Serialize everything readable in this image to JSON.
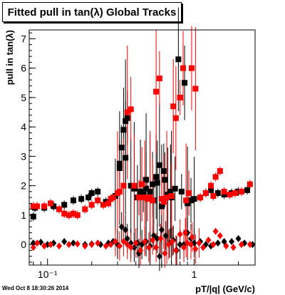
{
  "chart_data": {
    "type": "scatter",
    "title": "Fitted pull in tan(λ)  Global Tracks",
    "xlabel": "pT/|q| (GeV/c)",
    "ylabel": "pull in tan(λ)",
    "x_scale": "log",
    "xlim": [
      0.075,
      2.6
    ],
    "ylim": [
      -0.7,
      7.3
    ],
    "x_tick_labels": [
      {
        "v": 0.1,
        "t": "10⁻¹"
      },
      {
        "v": 1,
        "t": "1"
      }
    ],
    "y_ticks": [
      0,
      1,
      2,
      3,
      4,
      5,
      6,
      7
    ],
    "series": [
      {
        "marker": "square",
        "color": "#000000",
        "points": [
          [
            0.08,
            0.95
          ],
          [
            0.082,
            1.25
          ],
          [
            0.095,
            1.25
          ],
          [
            0.11,
            1.3
          ],
          [
            0.13,
            1.35
          ],
          [
            0.15,
            1.5
          ],
          [
            0.17,
            1.55
          ],
          [
            0.19,
            1.6
          ],
          [
            0.2,
            1.75
          ],
          [
            0.22,
            1.8
          ],
          [
            0.25,
            1.45
          ],
          [
            0.27,
            1.55
          ],
          [
            0.29,
            1.65
          ],
          [
            0.31,
            2.6
          ],
          [
            0.32,
            3.3
          ],
          [
            0.33,
            3.9
          ],
          [
            0.34,
            4.2
          ],
          [
            0.35,
            4.3
          ],
          [
            0.37,
            2.0
          ],
          [
            0.39,
            1.9
          ],
          [
            0.41,
            1.6
          ],
          [
            0.43,
            1.8
          ],
          [
            0.45,
            1.7
          ],
          [
            0.47,
            1.9
          ],
          [
            0.5,
            1.8
          ],
          [
            0.53,
            1.5
          ],
          [
            0.56,
            2.1
          ],
          [
            0.6,
            1.3
          ],
          [
            0.63,
            2.2
          ],
          [
            0.66,
            1.7
          ],
          [
            0.7,
            1.6
          ],
          [
            0.74,
            1.9
          ],
          [
            0.78,
            6.3
          ],
          [
            0.82,
            1.8
          ],
          [
            0.86,
            5.5
          ],
          [
            0.9,
            1.4
          ],
          [
            0.95,
            1.5
          ],
          [
            1.0,
            1.55
          ],
          [
            1.1,
            1.6
          ],
          [
            1.2,
            1.75
          ],
          [
            1.3,
            1.85
          ],
          [
            1.45,
            1.75
          ],
          [
            1.6,
            1.7
          ],
          [
            1.8,
            1.75
          ],
          [
            2.0,
            1.8
          ],
          [
            2.3,
            1.85
          ],
          [
            0.34,
            2.95
          ],
          [
            0.31,
            2.75
          ],
          [
            0.55,
            2.3
          ],
          [
            0.58,
            2.7
          ],
          [
            0.62,
            2.5
          ],
          [
            0.69,
            1.8
          ],
          [
            0.47,
            2.2
          ],
          [
            0.52,
            2.05
          ]
        ]
      },
      {
        "marker": "square",
        "color": "#ff0000",
        "points": [
          [
            0.08,
            1.3
          ],
          [
            0.085,
            1.3
          ],
          [
            0.095,
            1.3
          ],
          [
            0.105,
            1.4
          ],
          [
            0.12,
            1.2
          ],
          [
            0.13,
            1.05
          ],
          [
            0.14,
            1.0
          ],
          [
            0.15,
            1.05
          ],
          [
            0.16,
            1.0
          ],
          [
            0.18,
            1.2
          ],
          [
            0.2,
            1.35
          ],
          [
            0.22,
            1.5
          ],
          [
            0.24,
            1.35
          ],
          [
            0.26,
            1.4
          ],
          [
            0.27,
            1.55
          ],
          [
            0.28,
            1.6
          ],
          [
            0.3,
            1.75
          ],
          [
            0.31,
            1.8
          ],
          [
            0.33,
            2.0
          ],
          [
            0.35,
            4.5
          ],
          [
            0.37,
            4.6
          ],
          [
            0.39,
            2.0
          ],
          [
            0.42,
            1.6
          ],
          [
            0.44,
            2.05
          ],
          [
            0.46,
            1.6
          ],
          [
            0.48,
            1.55
          ],
          [
            0.52,
            1.5
          ],
          [
            0.55,
            5.2
          ],
          [
            0.58,
            5.65
          ],
          [
            0.62,
            1.45
          ],
          [
            0.65,
            1.6
          ],
          [
            0.7,
            1.65
          ],
          [
            0.75,
            4.3
          ],
          [
            0.8,
            5.0
          ],
          [
            0.84,
            6.0
          ],
          [
            0.88,
            1.5
          ],
          [
            0.92,
            1.75
          ],
          [
            0.96,
            6.0
          ],
          [
            1.02,
            5.3
          ],
          [
            1.1,
            1.6
          ],
          [
            1.2,
            1.75
          ],
          [
            1.3,
            2.0
          ],
          [
            1.4,
            2.3
          ],
          [
            1.5,
            2.5
          ],
          [
            1.6,
            1.8
          ],
          [
            1.75,
            1.7
          ],
          [
            1.9,
            1.75
          ],
          [
            2.1,
            1.8
          ],
          [
            2.4,
            2.05
          ],
          [
            1.35,
            1.65
          ],
          [
            0.6,
            1.55
          ],
          [
            0.72,
            4.7
          ],
          [
            0.5,
            1.6
          ]
        ]
      },
      {
        "marker": "diamond",
        "color": "#000000",
        "points": [
          [
            0.08,
            0.05
          ],
          [
            0.09,
            0.08
          ],
          [
            0.1,
            0.0
          ],
          [
            0.11,
            0.05
          ],
          [
            0.13,
            0.1
          ],
          [
            0.15,
            0.05
          ],
          [
            0.18,
            0.0
          ],
          [
            0.2,
            0.02
          ],
          [
            0.23,
            0.0
          ],
          [
            0.26,
            0.05
          ],
          [
            0.28,
            0.1
          ],
          [
            0.3,
            0.0
          ],
          [
            0.32,
            0.6
          ],
          [
            0.34,
            0.5
          ],
          [
            0.35,
            0.2
          ],
          [
            0.37,
            0.05
          ],
          [
            0.39,
            -0.1
          ],
          [
            0.41,
            0.05
          ],
          [
            0.44,
            0.0
          ],
          [
            0.47,
            0.1
          ],
          [
            0.5,
            -0.05
          ],
          [
            0.53,
            0.3
          ],
          [
            0.56,
            0.2
          ],
          [
            0.6,
            0.5
          ],
          [
            0.64,
            0.3
          ],
          [
            0.68,
            0.05
          ],
          [
            0.72,
            0.15
          ],
          [
            0.76,
            -0.2
          ],
          [
            0.8,
            0.0
          ],
          [
            0.85,
            0.0
          ],
          [
            0.9,
            0.4
          ],
          [
            0.95,
            0.2
          ],
          [
            1.0,
            0.05
          ],
          [
            1.1,
            0.1
          ],
          [
            1.2,
            0.0
          ],
          [
            1.3,
            -0.05
          ],
          [
            1.45,
            0.05
          ],
          [
            1.6,
            0.1
          ],
          [
            1.8,
            0.1
          ],
          [
            2.0,
            0.2
          ],
          [
            2.2,
            0.05
          ],
          [
            2.5,
            0.0
          ],
          [
            0.42,
            -0.3
          ],
          [
            0.58,
            -0.4
          ]
        ]
      },
      {
        "marker": "diamond",
        "color": "#ff0000",
        "points": [
          [
            0.08,
            -0.1
          ],
          [
            0.085,
            0.05
          ],
          [
            0.095,
            -0.05
          ],
          [
            0.105,
            0.0
          ],
          [
            0.12,
            -0.05
          ],
          [
            0.14,
            0.0
          ],
          [
            0.16,
            0.02
          ],
          [
            0.18,
            -0.05
          ],
          [
            0.2,
            0.0
          ],
          [
            0.22,
            0.05
          ],
          [
            0.25,
            -0.05
          ],
          [
            0.27,
            0.0
          ],
          [
            0.29,
            0.1
          ],
          [
            0.31,
            -0.05
          ],
          [
            0.33,
            0.1
          ],
          [
            0.35,
            0.0
          ],
          [
            0.37,
            -0.1
          ],
          [
            0.4,
            0.05
          ],
          [
            0.43,
            -0.2
          ],
          [
            0.46,
            0.1
          ],
          [
            0.49,
            -0.1
          ],
          [
            0.52,
            0.15
          ],
          [
            0.55,
            -0.1
          ],
          [
            0.59,
            0.2
          ],
          [
            0.63,
            -0.3
          ],
          [
            0.67,
            0.0
          ],
          [
            0.71,
            0.1
          ],
          [
            0.75,
            -0.2
          ],
          [
            0.8,
            0.35
          ],
          [
            0.85,
            -0.1
          ],
          [
            0.9,
            0.05
          ],
          [
            0.95,
            0.0
          ],
          [
            1.02,
            -0.15
          ],
          [
            1.08,
            0.05
          ],
          [
            1.15,
            -0.1
          ],
          [
            1.25,
            0.15
          ],
          [
            1.35,
            0.0
          ],
          [
            1.5,
            0.3
          ],
          [
            1.65,
            -0.05
          ],
          [
            1.85,
            -0.1
          ],
          [
            2.1,
            0.0
          ],
          [
            2.4,
            0.0
          ],
          [
            1.4,
            0.45
          ],
          [
            0.87,
            0.4
          ],
          [
            0.97,
            0.25
          ]
        ]
      }
    ]
  },
  "timestamp": "Wed Oct  8 18:30:26 2014"
}
